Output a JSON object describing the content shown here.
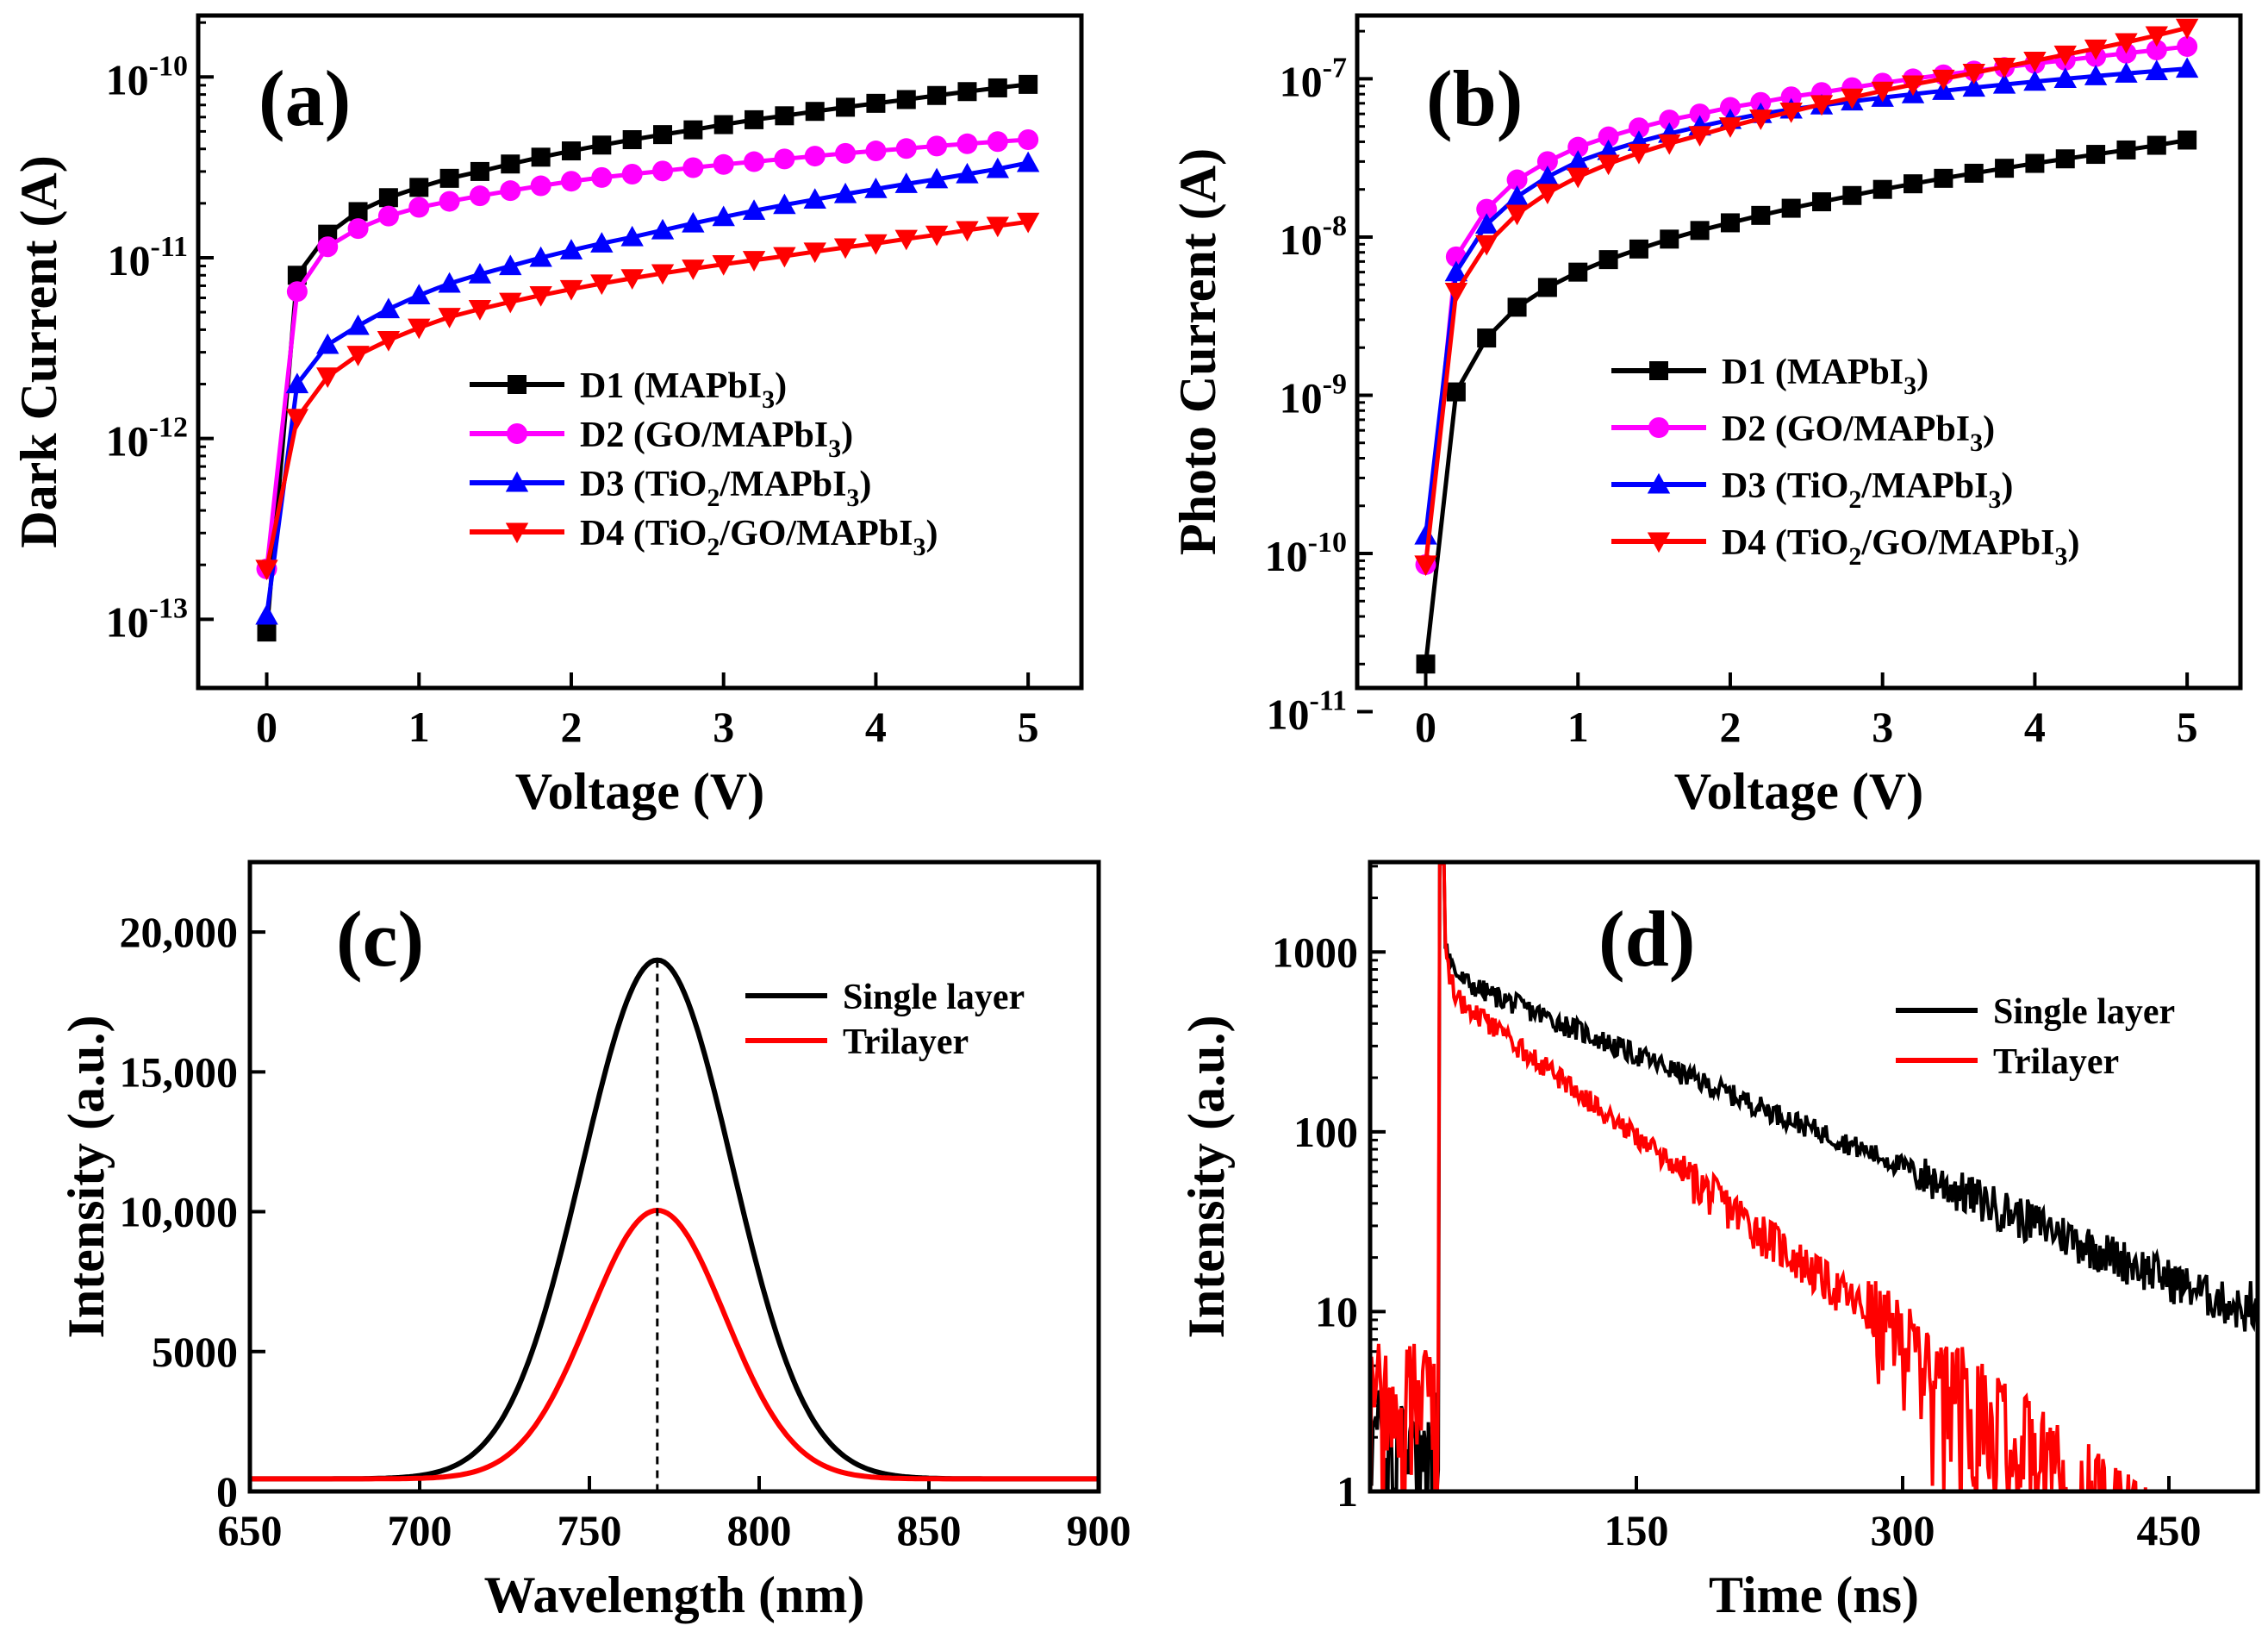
{
  "chart_data": [
    {
      "id": "a",
      "type": "line",
      "panel_label": "(a)",
      "xlabel": "Voltage (V)",
      "ylabel": "Dark Current (A)",
      "xlim": [
        -0.45,
        5.35
      ],
      "ylim_log10": [
        -13.38,
        -9.66
      ],
      "y_scale": "log",
      "x_ticks": [
        0,
        1,
        2,
        3,
        4,
        5
      ],
      "x_tick_labels": [
        "0",
        "1",
        "2",
        "3",
        "4",
        "5"
      ],
      "y_ticks_exp": [
        -13,
        -12,
        -11,
        -10
      ],
      "y_tick_bases": [
        "10",
        "10",
        "10",
        "10"
      ],
      "y_tick_exps": [
        "-13",
        "-12",
        "-11",
        "-10"
      ],
      "legend_position": "center-right",
      "x": [
        0,
        0.2,
        0.4,
        0.6,
        0.8,
        1.0,
        1.2,
        1.4,
        1.6,
        1.8,
        2.0,
        2.2,
        2.4,
        2.6,
        2.8,
        3.0,
        3.2,
        3.4,
        3.6,
        3.8,
        4.0,
        4.2,
        4.4,
        4.6,
        4.8,
        5.0
      ],
      "series": [
        {
          "name": "D1",
          "label_prefix": "D1  (MAPbI",
          "label_sub": "3",
          "label_suffix": ")",
          "color": "#000000",
          "marker": "square",
          "values": [
            8.5e-14,
            8e-12,
            1.35e-11,
            1.8e-11,
            2.15e-11,
            2.45e-11,
            2.75e-11,
            3e-11,
            3.3e-11,
            3.6e-11,
            3.9e-11,
            4.2e-11,
            4.5e-11,
            4.8e-11,
            5.1e-11,
            5.45e-11,
            5.8e-11,
            6.1e-11,
            6.45e-11,
            6.8e-11,
            7.15e-11,
            7.5e-11,
            7.9e-11,
            8.3e-11,
            8.7e-11,
            9.1e-11
          ]
        },
        {
          "name": "D2",
          "label_prefix": "D2  (GO/MAPbI",
          "label_sub": "3",
          "label_suffix": ")",
          "color": "#ff00ff",
          "marker": "circle",
          "values": [
            1.9e-13,
            6.5e-12,
            1.15e-11,
            1.45e-11,
            1.7e-11,
            1.9e-11,
            2.05e-11,
            2.2e-11,
            2.35e-11,
            2.5e-11,
            2.65e-11,
            2.78e-11,
            2.9e-11,
            3.02e-11,
            3.15e-11,
            3.28e-11,
            3.4e-11,
            3.52e-11,
            3.65e-11,
            3.78e-11,
            3.9e-11,
            4.02e-11,
            4.15e-11,
            4.27e-11,
            4.39e-11,
            4.5e-11
          ]
        },
        {
          "name": "D3",
          "label_prefix": "D3  (TiO",
          "label_sub": "2",
          "label_suffix": "/MAPbI",
          "label_sub2": "3",
          "label_suffix2": ")",
          "color": "#0000ff",
          "marker": "triangle-up",
          "values": [
            1.05e-13,
            2e-12,
            3.3e-12,
            4.2e-12,
            5.2e-12,
            6.2e-12,
            7.2e-12,
            8.1e-12,
            9e-12,
            1e-11,
            1.1e-11,
            1.2e-11,
            1.3e-11,
            1.42e-11,
            1.55e-11,
            1.68e-11,
            1.82e-11,
            1.96e-11,
            2.1e-11,
            2.25e-11,
            2.4e-11,
            2.56e-11,
            2.72e-11,
            2.9e-11,
            3.1e-11,
            3.35e-11
          ]
        },
        {
          "name": "D4",
          "label_prefix": "D4  (TiO",
          "label_sub": "2",
          "label_suffix": "/GO/MAPbI",
          "label_sub2": "3",
          "label_suffix2": ")",
          "color": "#ff0000",
          "marker": "triangle-down",
          "values": [
            1.9e-13,
            1.3e-12,
            2.2e-12,
            2.9e-12,
            3.5e-12,
            4.1e-12,
            4.7e-12,
            5.2e-12,
            5.7e-12,
            6.2e-12,
            6.7e-12,
            7.2e-12,
            7.7e-12,
            8.2e-12,
            8.7e-12,
            9.2e-12,
            9.7e-12,
            1.02e-11,
            1.08e-11,
            1.14e-11,
            1.2e-11,
            1.27e-11,
            1.34e-11,
            1.42e-11,
            1.5e-11,
            1.58e-11
          ]
        }
      ]
    },
    {
      "id": "b",
      "type": "line",
      "panel_label": "(b)",
      "xlabel": "Voltage (V)",
      "ylabel": "Photo Current (A)",
      "xlim": [
        -0.45,
        5.35
      ],
      "ylim_log10": [
        -10.85,
        -6.6
      ],
      "y_scale": "log",
      "x_ticks": [
        0,
        1,
        2,
        3,
        4,
        5
      ],
      "x_tick_labels": [
        "0",
        "1",
        "2",
        "3",
        "4",
        "5"
      ],
      "y_ticks_exp": [
        -11,
        -10,
        -9,
        -8,
        -7
      ],
      "y_tick_bases": [
        "10",
        "10",
        "10",
        "10",
        "10"
      ],
      "y_tick_exps": [
        "-11",
        "-10",
        "-9",
        "-8",
        "-7"
      ],
      "legend_position": "center-right",
      "x": [
        0,
        0.2,
        0.4,
        0.6,
        0.8,
        1.0,
        1.2,
        1.4,
        1.6,
        1.8,
        2.0,
        2.2,
        2.4,
        2.6,
        2.8,
        3.0,
        3.2,
        3.4,
        3.6,
        3.8,
        4.0,
        4.2,
        4.4,
        4.6,
        4.8,
        5.0
      ],
      "series": [
        {
          "name": "D1",
          "label_prefix": "D1  (MAPbI",
          "label_sub": "3",
          "label_suffix": ")",
          "color": "#000000",
          "marker": "square",
          "values": [
            2e-11,
            1.05e-09,
            2.3e-09,
            3.6e-09,
            4.8e-09,
            6e-09,
            7.2e-09,
            8.4e-09,
            9.7e-09,
            1.1e-08,
            1.23e-08,
            1.37e-08,
            1.52e-08,
            1.67e-08,
            1.83e-08,
            2e-08,
            2.17e-08,
            2.35e-08,
            2.53e-08,
            2.72e-08,
            2.92e-08,
            3.12e-08,
            3.33e-08,
            3.55e-08,
            3.8e-08,
            4.1e-08
          ]
        },
        {
          "name": "D2",
          "label_prefix": "D2  (GO/MAPbI",
          "label_sub": "3",
          "label_suffix": ")",
          "color": "#ff00ff",
          "marker": "circle",
          "values": [
            8.5e-11,
            7.5e-09,
            1.5e-08,
            2.3e-08,
            3e-08,
            3.7e-08,
            4.3e-08,
            4.9e-08,
            5.5e-08,
            6e-08,
            6.6e-08,
            7.1e-08,
            7.7e-08,
            8.2e-08,
            8.8e-08,
            9.4e-08,
            1e-07,
            1.06e-07,
            1.12e-07,
            1.18e-07,
            1.25e-07,
            1.31e-07,
            1.38e-07,
            1.45e-07,
            1.52e-07,
            1.6e-07
          ]
        },
        {
          "name": "D3",
          "label_prefix": "D3  (TiO",
          "label_sub": "2",
          "label_suffix": "/MAPbI",
          "label_sub2": "3",
          "label_suffix2": ")",
          "color": "#0000ff",
          "marker": "triangle-up",
          "values": [
            1.3e-10,
            6e-09,
            1.2e-08,
            1.8e-08,
            2.4e-08,
            3e-08,
            3.5e-08,
            4e-08,
            4.5e-08,
            5e-08,
            5.5e-08,
            6e-08,
            6.4e-08,
            6.8e-08,
            7.2e-08,
            7.6e-08,
            8e-08,
            8.4e-08,
            8.8e-08,
            9.2e-08,
            9.6e-08,
            1e-07,
            1.04e-07,
            1.08e-07,
            1.12e-07,
            1.16e-07
          ]
        },
        {
          "name": "D4",
          "label_prefix": "D4  (TiO",
          "label_sub": "2",
          "label_suffix": "/GO/MAPbI",
          "label_sub2": "3",
          "label_suffix2": ")",
          "color": "#ff0000",
          "marker": "triangle-down",
          "values": [
            8.5e-11,
            4.5e-09,
            9e-09,
            1.4e-08,
            1.9e-08,
            2.4e-08,
            2.9e-08,
            3.4e-08,
            3.9e-08,
            4.4e-08,
            5e-08,
            5.6e-08,
            6.2e-08,
            6.9e-08,
            7.6e-08,
            8.4e-08,
            9.2e-08,
            1e-07,
            1.09e-07,
            1.19e-07,
            1.3e-07,
            1.42e-07,
            1.55e-07,
            1.7e-07,
            1.88e-07,
            2.1e-07
          ]
        }
      ]
    },
    {
      "id": "c",
      "type": "line",
      "panel_label": "(c)",
      "xlabel": "Wavelength (nm)",
      "ylabel": "Intensity (a.u.)",
      "xlim": [
        650,
        900
      ],
      "ylim": [
        0,
        22500
      ],
      "x_ticks": [
        650,
        700,
        750,
        800,
        850,
        900
      ],
      "x_tick_labels": [
        "650",
        "700",
        "750",
        "800",
        "850",
        "900"
      ],
      "y_ticks": [
        0,
        5000,
        10000,
        15000,
        20000
      ],
      "y_tick_labels": [
        "0",
        "5000",
        "10,000",
        "15,000",
        "20,000"
      ],
      "legend_position": "top-right",
      "peak_marker_x": 770,
      "series": [
        {
          "name": "Single layer",
          "color": "#000000",
          "model": "gaussian",
          "center": 770,
          "amplitude": 18550,
          "sigma": 22,
          "baseline": 450
        },
        {
          "name": "Trilayer",
          "color": "#ff0000",
          "model": "gaussian",
          "center": 770,
          "amplitude": 9600,
          "sigma": 20,
          "baseline": 450
        }
      ]
    },
    {
      "id": "d",
      "type": "line",
      "panel_label": "(d)",
      "xlabel": "Time (ns)",
      "ylabel": "Intensity (a.u.)",
      "xlim": [
        0,
        500
      ],
      "ylim_log10": [
        0,
        3.5
      ],
      "y_scale": "log",
      "x_ticks": [
        150,
        300,
        450
      ],
      "x_tick_labels": [
        "150",
        "300",
        "450"
      ],
      "y_ticks_exp": [
        0,
        1,
        2,
        3
      ],
      "y_tick_labels": [
        "1",
        "10",
        "100",
        "1000"
      ],
      "legend_position": "top-right",
      "series": [
        {
          "name": "Single layer",
          "color": "#000000",
          "model": "biexponential",
          "t_rise": 41,
          "peak": 3100,
          "floor_before": 2.2,
          "a1": 700,
          "tau1": 3,
          "a2": 760,
          "tau2": 105
        },
        {
          "name": "Trilayer",
          "color": "#ff0000",
          "model": "biexponential",
          "t_rise": 41,
          "peak": 3100,
          "floor_before": 4.0,
          "a1": 800,
          "tau1": 2.5,
          "a2": 620,
          "tau2": 58
        }
      ]
    }
  ]
}
